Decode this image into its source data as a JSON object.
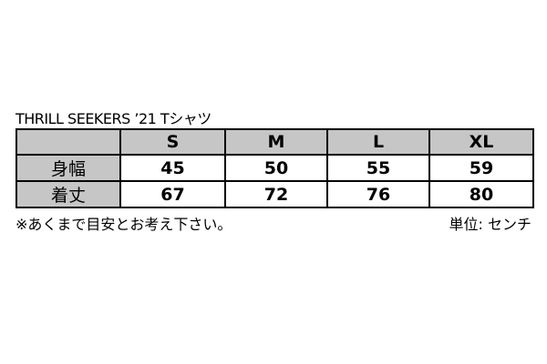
{
  "title": "THRILL SEEKERS ’21  Tシャツ",
  "table": {
    "columns": [
      "",
      "S",
      "M",
      "L",
      "XL"
    ],
    "rows": [
      {
        "label": "身幅",
        "values": [
          "45",
          "50",
          "55",
          "59"
        ]
      },
      {
        "label": "着丈",
        "values": [
          "67",
          "72",
          "76",
          "80"
        ]
      }
    ]
  },
  "note": "※あくまで目安とお考え下さい。",
  "unit": "単位: センチ",
  "colors": {
    "header_bg": "#c6c6c6",
    "border": "#000000"
  }
}
